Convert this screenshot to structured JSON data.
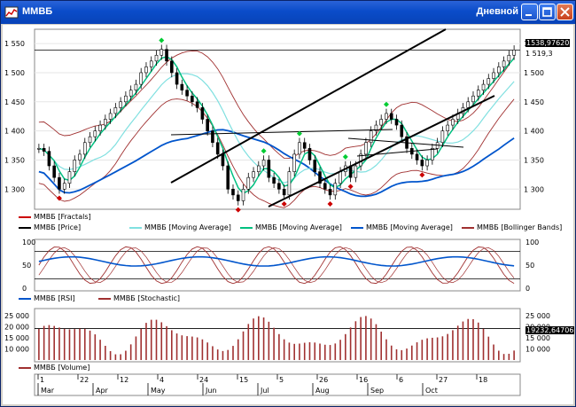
{
  "window": {
    "title": "ММВБ",
    "mode": "Дневной",
    "buttons": [
      "minimize",
      "maximize",
      "close"
    ]
  },
  "colors": {
    "price_candles": "#000000",
    "fractals": "#cc0000",
    "fractal_up": "#00cc33",
    "ma_fast": "#00c080",
    "ma_mid": "#80e0e0",
    "ma_slow": "#0055cc",
    "bollinger": "#a03030",
    "rsi": "#0055cc",
    "stochastic": "#a03030",
    "volume": "#a03030",
    "trend_lines": "#000000"
  },
  "price_panel": {
    "axis_labels": [
      "1 550",
      "1 500",
      "1 450",
      "1 400",
      "1 350",
      "1 300"
    ],
    "last_price_tag": "1538,97620",
    "prev_price_tag": "1 519,3",
    "legend": [
      {
        "text": "ММВБ [Fractals]",
        "color": "#cc0000"
      },
      {
        "text": "ММВБ [Price]",
        "color": "#000000"
      },
      {
        "text": "ММВБ [Moving Average]",
        "color": "#80e0e0"
      },
      {
        "text": "ММВБ [Moving Average]",
        "color": "#00c080"
      },
      {
        "text": "ММВБ [Moving Average]",
        "color": "#0055cc"
      },
      {
        "text": "ММВБ [Bollinger Bands]",
        "color": "#a03030"
      }
    ]
  },
  "oscillator_panel": {
    "axis_labels": [
      "100",
      "50",
      "0"
    ],
    "legend": [
      {
        "text": "ММВБ [RSI]",
        "color": "#0055cc"
      },
      {
        "text": "ММВБ [Stochastic]",
        "color": "#a03030"
      }
    ]
  },
  "volume_panel": {
    "left_axis_labels": [
      "25 000",
      "20 000",
      "15 000",
      "10 000"
    ],
    "right_axis_labels": [
      "25 000",
      "20 000",
      "15 000",
      "10 000"
    ],
    "last_volume_tag": "19232,64706",
    "legend": [
      {
        "text": "ММВБ [Volume]",
        "color": "#a03030"
      }
    ]
  },
  "time_axis": {
    "days": [
      "1",
      "22",
      "12",
      "4",
      "24",
      "15",
      "5",
      "26",
      "16",
      "6",
      "27",
      "18"
    ],
    "months": [
      "Mar",
      "Apr",
      "May",
      "Jun",
      "Jul",
      "Aug",
      "Sep",
      "Oct"
    ]
  },
  "chart_data": {
    "type": "candlestick",
    "price_ylim": [
      1270,
      1570
    ],
    "price_close": [
      1370,
      1365,
      1340,
      1320,
      1300,
      1310,
      1330,
      1350,
      1360,
      1380,
      1390,
      1400,
      1410,
      1420,
      1430,
      1440,
      1450,
      1460,
      1470,
      1480,
      1500,
      1510,
      1520,
      1530,
      1540,
      1520,
      1500,
      1480,
      1470,
      1460,
      1450,
      1440,
      1420,
      1400,
      1380,
      1360,
      1340,
      1300,
      1290,
      1280,
      1300,
      1320,
      1330,
      1340,
      1350,
      1320,
      1310,
      1300,
      1290,
      1330,
      1360,
      1380,
      1370,
      1350,
      1330,
      1310,
      1300,
      1290,
      1310,
      1330,
      1340,
      1320,
      1340,
      1360,
      1380,
      1400,
      1410,
      1420,
      1430,
      1420,
      1410,
      1390,
      1370,
      1360,
      1350,
      1340,
      1350,
      1370,
      1380,
      1400,
      1410,
      1420,
      1430,
      1440,
      1450,
      1460,
      1470,
      1480,
      1490,
      1500,
      1510,
      1520,
      1530,
      1539
    ],
    "oscillator_ylim": [
      0,
      100
    ],
    "volume_ylim": [
      5000,
      27000
    ],
    "volume_level_line": 19232.64706
  }
}
